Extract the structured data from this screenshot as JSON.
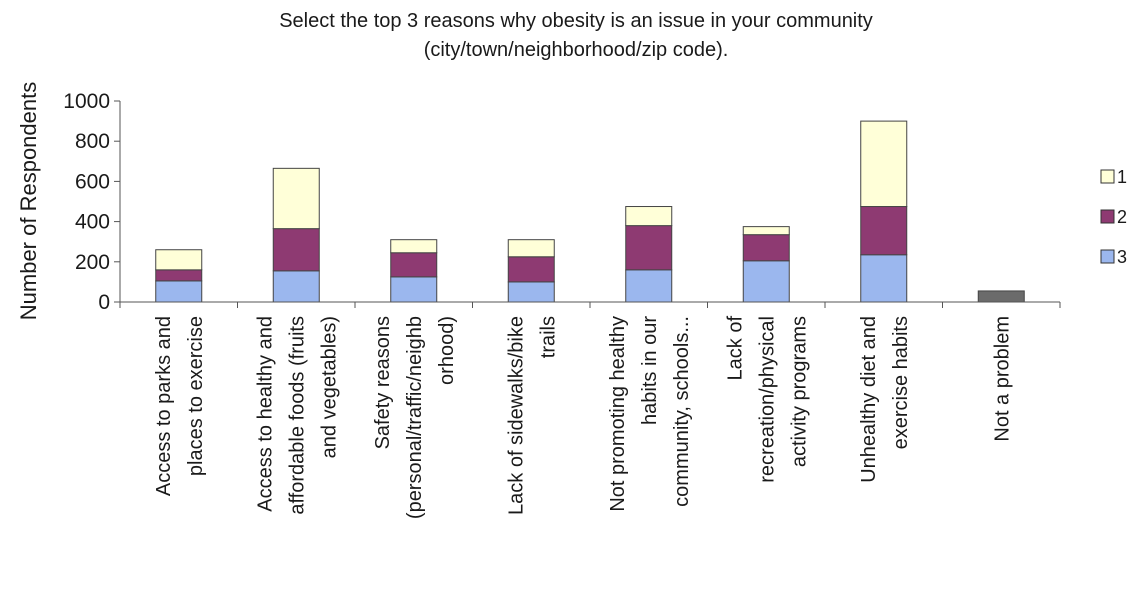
{
  "chart_data": {
    "type": "bar",
    "stacked": true,
    "title": "Select the top 3 reasons why obesity is an issue in your community",
    "subtitle": "(city/town/neighborhood/zip code).",
    "xlabel": "",
    "ylabel": "Number of Respondents",
    "ylim": [
      0,
      1000
    ],
    "yticks": [
      0,
      200,
      400,
      600,
      800,
      1000
    ],
    "grid": false,
    "legend_position": "right",
    "categories": [
      [
        "Access to parks and",
        "places to exercise"
      ],
      [
        "Access to healthy and",
        "affordable foods (fruits",
        "and vegetables)"
      ],
      [
        "Safety reasons",
        "(personal/traffic/neighb",
        "orhood)"
      ],
      [
        "Lack of sidewalks/bike",
        "trails"
      ],
      [
        "Not promoting healthy",
        "habits in our",
        "community, schools..."
      ],
      [
        "Lack of",
        "recreation/physical",
        "activity programs"
      ],
      [
        "Unhealthy diet and",
        "exercise habits"
      ],
      [
        "Not a problem"
      ]
    ],
    "series": [
      {
        "name": "3",
        "color": "#9bb7ee",
        "values": [
          105,
          155,
          125,
          100,
          160,
          205,
          235,
          0
        ]
      },
      {
        "name": "2",
        "color": "#8e3a72",
        "values": [
          55,
          210,
          120,
          125,
          220,
          130,
          240,
          0
        ]
      },
      {
        "name": "1",
        "color": "#ffffd8",
        "values": [
          100,
          300,
          65,
          85,
          95,
          40,
          425,
          0
        ]
      }
    ],
    "single_values": [
      null,
      null,
      null,
      null,
      null,
      null,
      null,
      55
    ],
    "single_color": "#6b6b6b",
    "legend_order": [
      "1",
      "2",
      "3"
    ]
  }
}
